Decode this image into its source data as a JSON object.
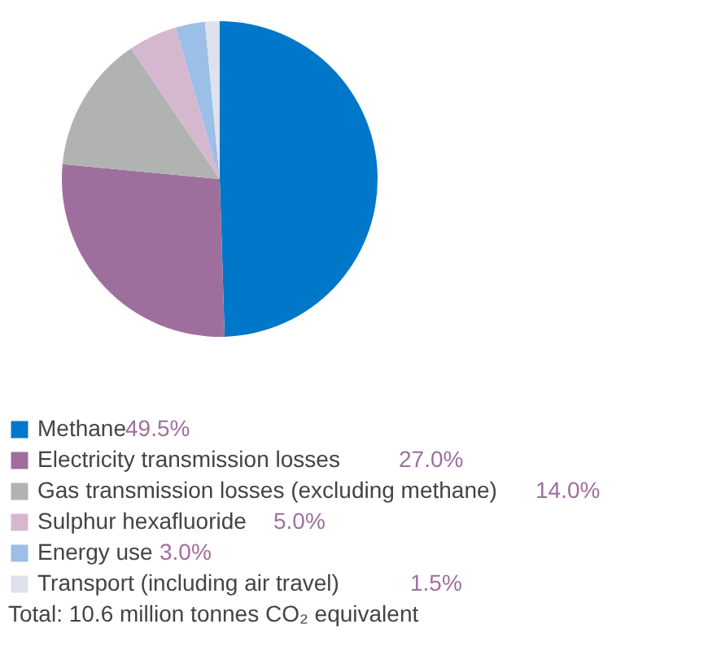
{
  "chart_data": {
    "type": "pie",
    "categories": [
      "Methane",
      "Electricity transmission losses",
      "Gas transmission losses (excluding methane)",
      "Sulphur hexafluoride",
      "Energy use",
      "Transport (including air travel)"
    ],
    "values": [
      49.5,
      27.0,
      14.0,
      5.0,
      3.0,
      1.5
    ],
    "value_labels": [
      "49.5%",
      "27.0%",
      "14.0%",
      "5.0%",
      "3.0%",
      "1.5%"
    ],
    "colors": [
      "#0077c8",
      "#9e6f9d",
      "#b1b3b3",
      "#d5b8d0",
      "#9bbfe6",
      "#dde2ec"
    ],
    "legend": "bottom",
    "annotations": [
      "Total: 10.6 million tonnes CO₂ equivalent"
    ]
  }
}
